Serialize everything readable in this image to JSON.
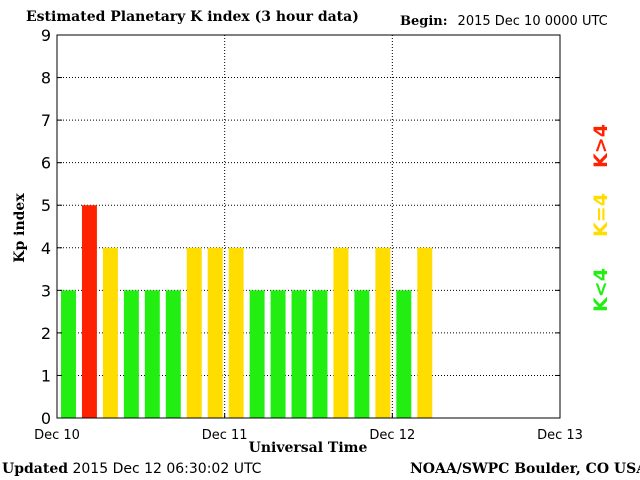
{
  "header": {
    "title": "Estimated Planetary K index (3 hour data)",
    "begin_label": "Begin:",
    "begin_value": "2015 Dec 10 0000 UTC"
  },
  "footer": {
    "updated_label": "Updated",
    "updated_value": "2015 Dec 12 06:30:02 UTC",
    "credit": "NOAA/SWPC Boulder, CO USA"
  },
  "legend": {
    "low": {
      "label": "K<4",
      "color": "#22ee11"
    },
    "mid": {
      "label": "K=4",
      "color": "#ffdd00"
    },
    "high": {
      "label": "K>4",
      "color": "#ff2200"
    }
  },
  "chart_data": {
    "type": "bar",
    "title": "Estimated Planetary K index (3 hour data)",
    "xlabel": "Universal Time",
    "ylabel": "Kp index",
    "ylim": [
      0,
      9
    ],
    "yticks": [
      0,
      1,
      2,
      3,
      4,
      5,
      6,
      7,
      8,
      9
    ],
    "x_ticks": [
      "Dec 10",
      "Dec 11",
      "Dec 12",
      "Dec 13"
    ],
    "bars_per_day": 8,
    "total_slots": 24,
    "grid": true,
    "values": [
      3,
      5,
      4,
      3,
      3,
      3,
      4,
      4,
      4,
      3,
      3,
      3,
      3,
      4,
      3,
      4,
      3,
      4
    ]
  }
}
